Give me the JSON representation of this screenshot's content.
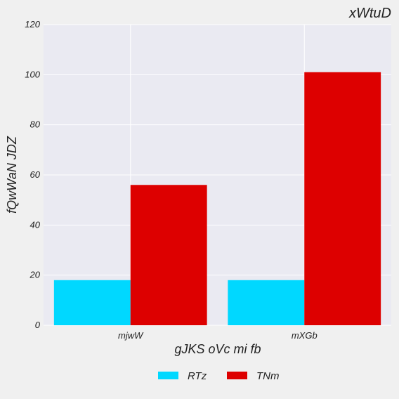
{
  "chart_data": {
    "type": "bar",
    "title": "xWtuD",
    "xlabel": "gJKS oVc mi fb",
    "ylabel": "fQwWaN JDZ",
    "categories": [
      "mjwW",
      "mXGb"
    ],
    "series": [
      {
        "name": "RTz",
        "values": [
          18,
          18
        ],
        "color": "#00d8ff"
      },
      {
        "name": "TNm",
        "values": [
          56,
          101
        ],
        "color": "#dd0000"
      }
    ],
    "ylim": [
      0,
      120
    ],
    "yticks": [
      0,
      20,
      40,
      60,
      80,
      100,
      120
    ],
    "grid": true,
    "legend_position": "bottom-center"
  },
  "colors": {
    "plot_background": "#eaeaf2",
    "page_background": "#f0f0f0",
    "grid": "#ffffff"
  }
}
